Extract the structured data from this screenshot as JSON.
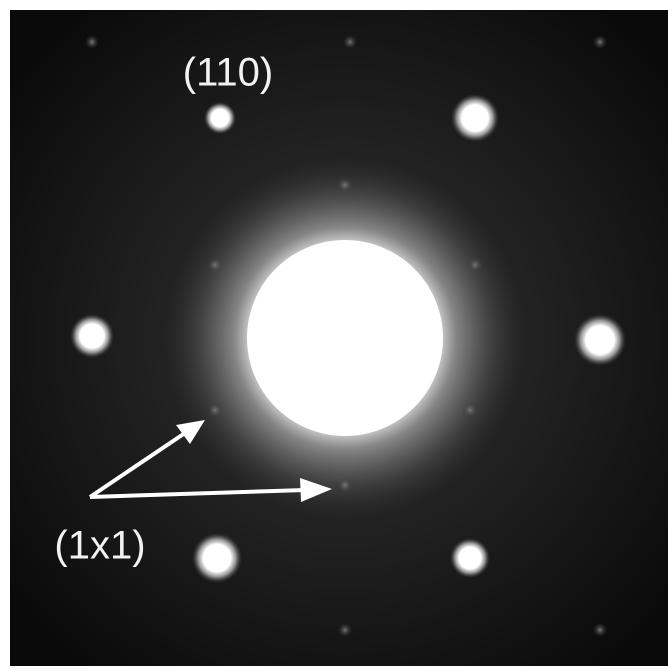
{
  "annotations": {
    "spot_label": "(110)",
    "lattice_label": "(1x1)"
  }
}
